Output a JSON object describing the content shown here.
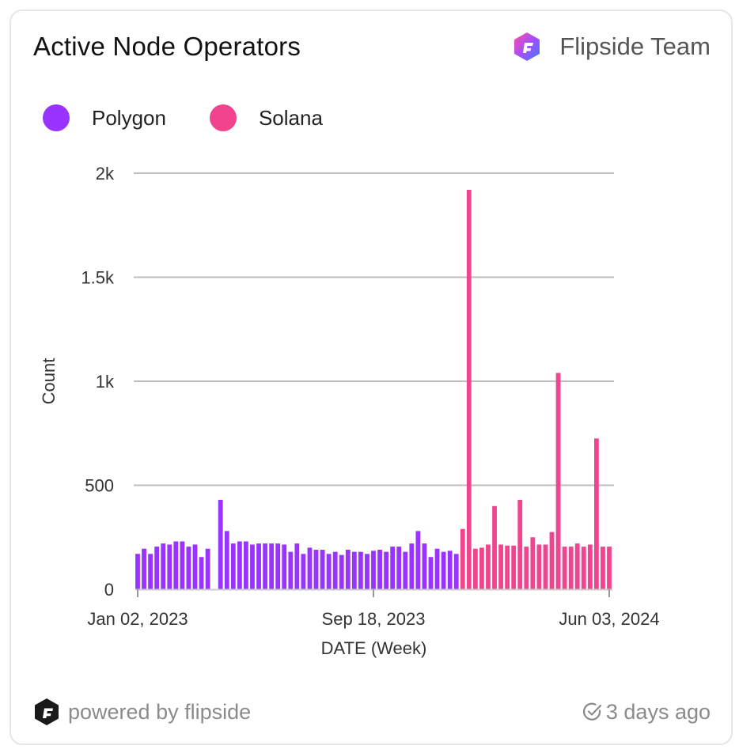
{
  "header": {
    "title": "Active Node Operators",
    "author": "Flipside Team"
  },
  "footer": {
    "powered_by": "powered by flipside",
    "updated": "3 days ago"
  },
  "colors": {
    "polygon": "#9933ff",
    "solana": "#f2438f",
    "grid": "#bdbdbd"
  },
  "chart_data": {
    "type": "bar",
    "title": "Active Node Operators",
    "xlabel": "DATE (Week)",
    "ylabel": "Count",
    "ylim": [
      0,
      2000
    ],
    "yticks": [
      0,
      500,
      1000,
      1500,
      2000
    ],
    "ytick_labels": [
      "0",
      "500",
      "1k",
      "1.5k",
      "2k"
    ],
    "xtick_labels": [
      "Jan 02, 2023",
      "Sep 18, 2023",
      "Jun 03, 2024"
    ],
    "xtick_index": [
      0,
      37,
      74
    ],
    "legend_position": "top-left",
    "series": [
      {
        "name": "Polygon",
        "start_index": 0,
        "values": [
          170,
          195,
          170,
          205,
          220,
          215,
          230,
          230,
          205,
          215,
          155,
          195,
          null,
          430,
          280,
          220,
          230,
          230,
          215,
          220,
          220,
          220,
          220,
          215,
          180,
          220,
          170,
          200,
          190,
          190,
          170,
          180,
          165,
          190,
          180,
          180,
          170,
          185,
          190,
          180,
          205,
          205,
          180,
          220,
          280,
          220,
          155,
          195,
          180,
          185,
          170
        ]
      },
      {
        "name": "Solana",
        "start_index": 51,
        "values": [
          290,
          1920,
          195,
          200,
          215,
          400,
          215,
          210,
          210,
          430,
          205,
          250,
          215,
          215,
          275,
          1040,
          205,
          205,
          220,
          205,
          215,
          725,
          205,
          205
        ]
      }
    ]
  }
}
